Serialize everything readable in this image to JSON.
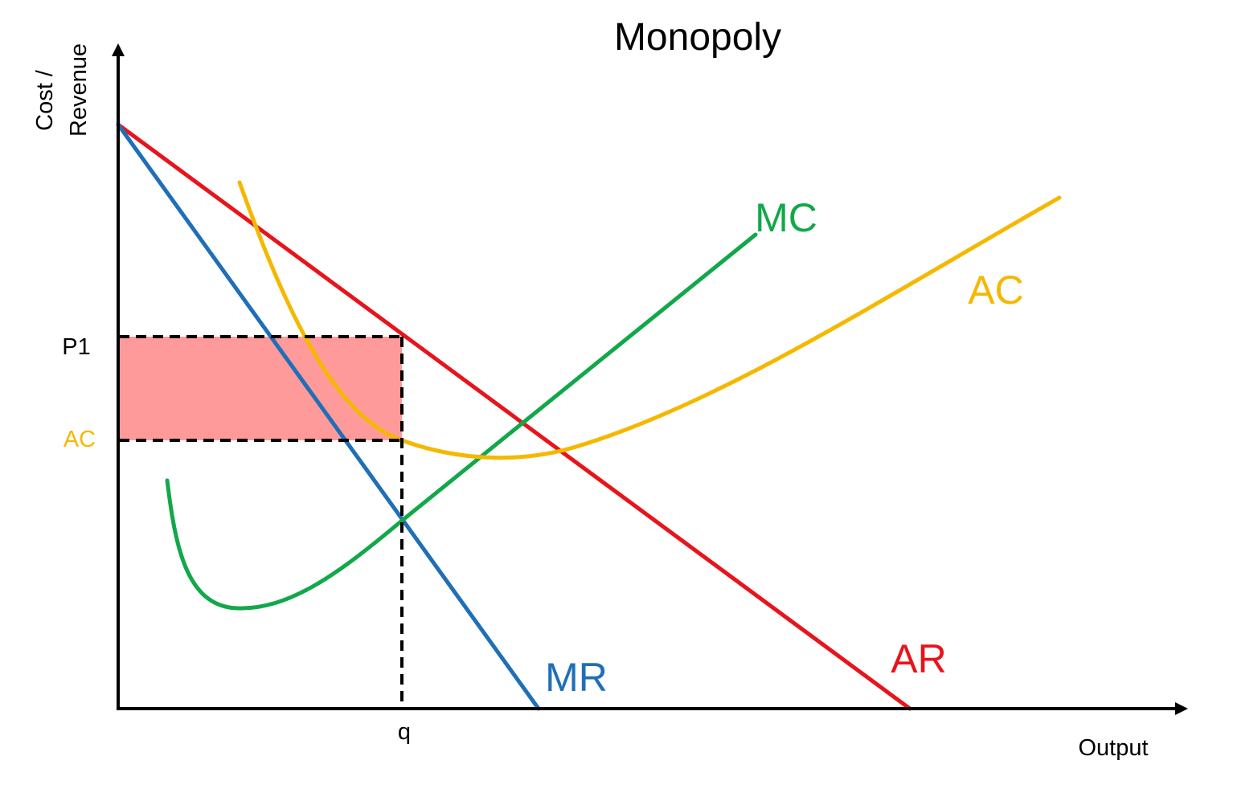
{
  "title": "Monopoly",
  "axes": {
    "y_label_line1": "Cost /",
    "y_label_line2": "Revenue",
    "x_label": "Output"
  },
  "ticks": {
    "p1": "P1",
    "ac": "AC",
    "q": "q"
  },
  "curves": {
    "mc": "MC",
    "ac": "AC",
    "mr": "MR",
    "ar": "AR"
  },
  "colors": {
    "ar": "#e8141c",
    "mr": "#1f6fb8",
    "mc": "#12a84a",
    "ac": "#f5b800",
    "profit_area": "#ff9a9a",
    "axis": "#000000"
  },
  "shaded_area": "supernormal profit rectangle between P1 and AC up to output q"
}
